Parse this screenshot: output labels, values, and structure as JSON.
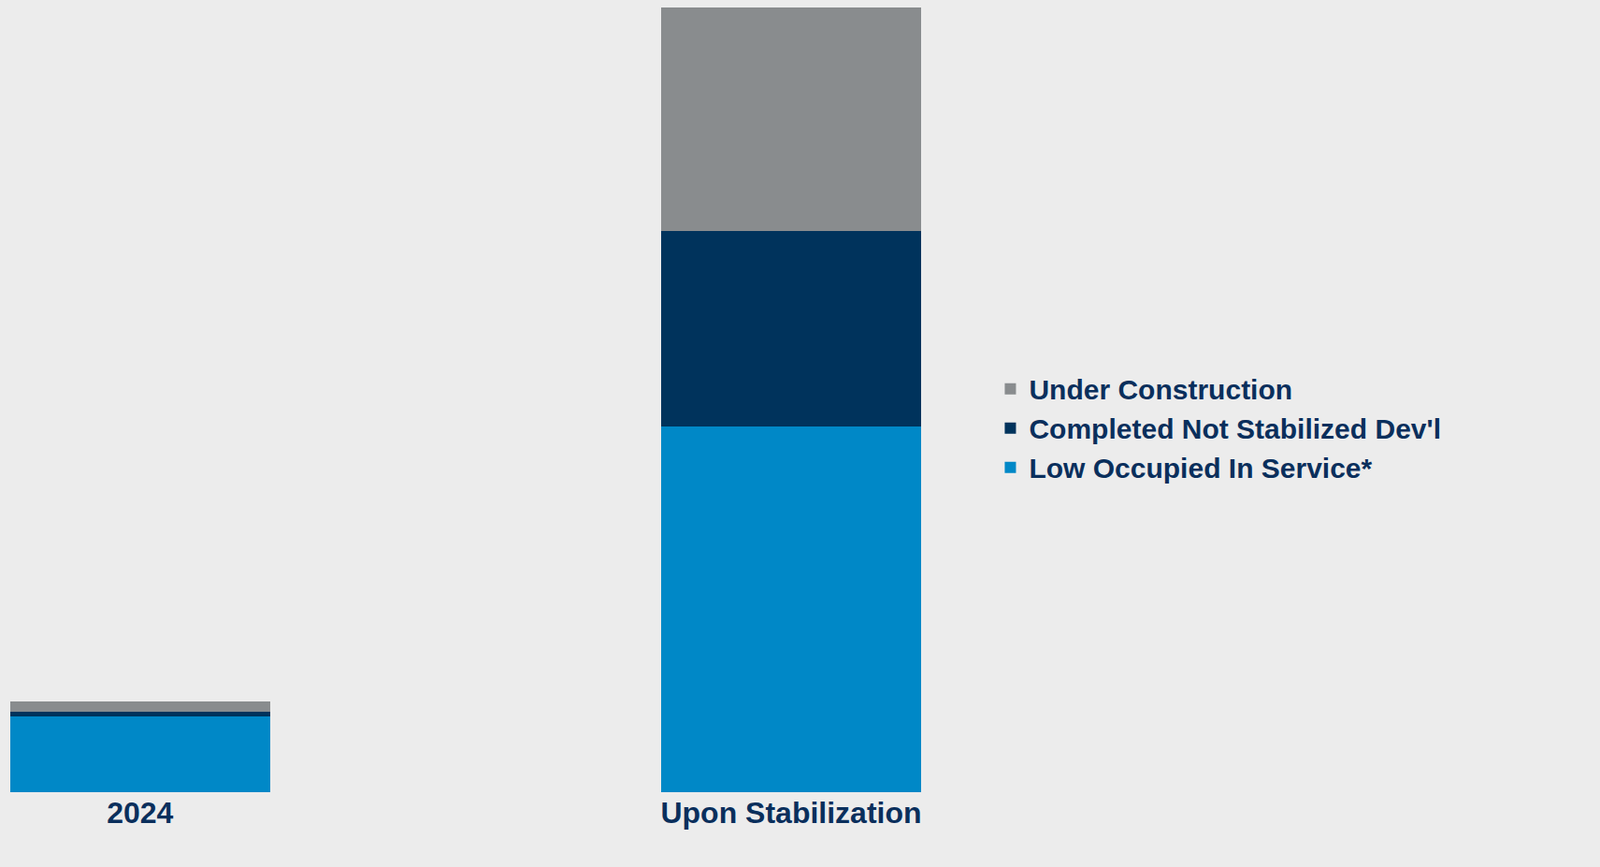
{
  "chart_data": {
    "type": "bar",
    "stacked": true,
    "categories": [
      "2024",
      "Upon Stabilization"
    ],
    "series": [
      {
        "name": "Low Occupied In Service*",
        "color": "#0088c7",
        "values": [
          74,
          358
        ]
      },
      {
        "name": "Completed Not Stabilized Dev'l",
        "color": "#00335c",
        "values": [
          5,
          192
        ]
      },
      {
        "name": "Under Construction",
        "color": "#898c8e",
        "values": [
          10,
          219
        ]
      }
    ],
    "ylim": [
      0,
      769
    ],
    "grid": false,
    "legend": "right",
    "tick_labels": "x"
  }
}
